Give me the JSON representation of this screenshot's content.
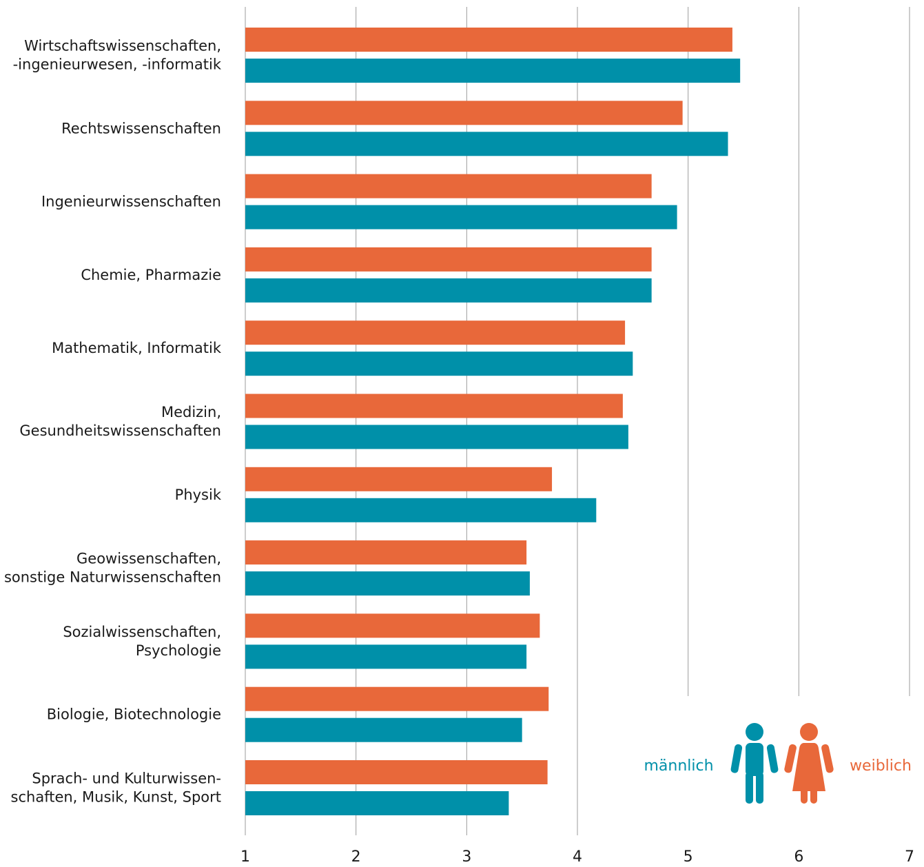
{
  "chart_data": {
    "type": "bar",
    "orientation": "horizontal",
    "categories": [
      [
        "Wirtschaftswissenschaften,",
        "-ingenieurwesen, -informatik"
      ],
      [
        "Rechtswissenschaften"
      ],
      [
        "Ingenieurwissenschaften"
      ],
      [
        "Chemie, Pharmazie"
      ],
      [
        "Mathematik, Informatik"
      ],
      [
        "Medizin,",
        "Gesundheitswissenschaften"
      ],
      [
        "Physik"
      ],
      [
        "Geowissenschaften,",
        "sonstige Naturwissenschaften"
      ],
      [
        "Sozialwissenschaften,",
        "Psychologie"
      ],
      [
        "Biologie, Biotechnologie"
      ],
      [
        "Sprach- und Kulturwissen-",
        "schaften, Musik, Kunst, Sport"
      ]
    ],
    "series": [
      {
        "name": "weiblich",
        "color": "#e8683a",
        "values": [
          5.4,
          4.95,
          4.67,
          4.67,
          4.43,
          4.41,
          3.77,
          3.54,
          3.66,
          3.74,
          3.73
        ]
      },
      {
        "name": "männlich",
        "color": "#0090a9",
        "values": [
          5.47,
          5.36,
          4.9,
          4.67,
          4.5,
          4.46,
          4.17,
          3.57,
          3.54,
          3.5,
          3.38
        ]
      }
    ],
    "xlim": [
      1,
      7
    ],
    "xticks": [
      "1",
      "2",
      "3",
      "4",
      "5",
      "6",
      "7"
    ],
    "grid": true,
    "legend_placement": "bottom-right",
    "title": "",
    "xlabel": "",
    "ylabel": ""
  },
  "legend": {
    "male_label": "männlich",
    "female_label": "weiblich",
    "male_icon": "male-person-icon",
    "female_icon": "female-person-icon",
    "gridline_color": "#9b9b9b"
  }
}
